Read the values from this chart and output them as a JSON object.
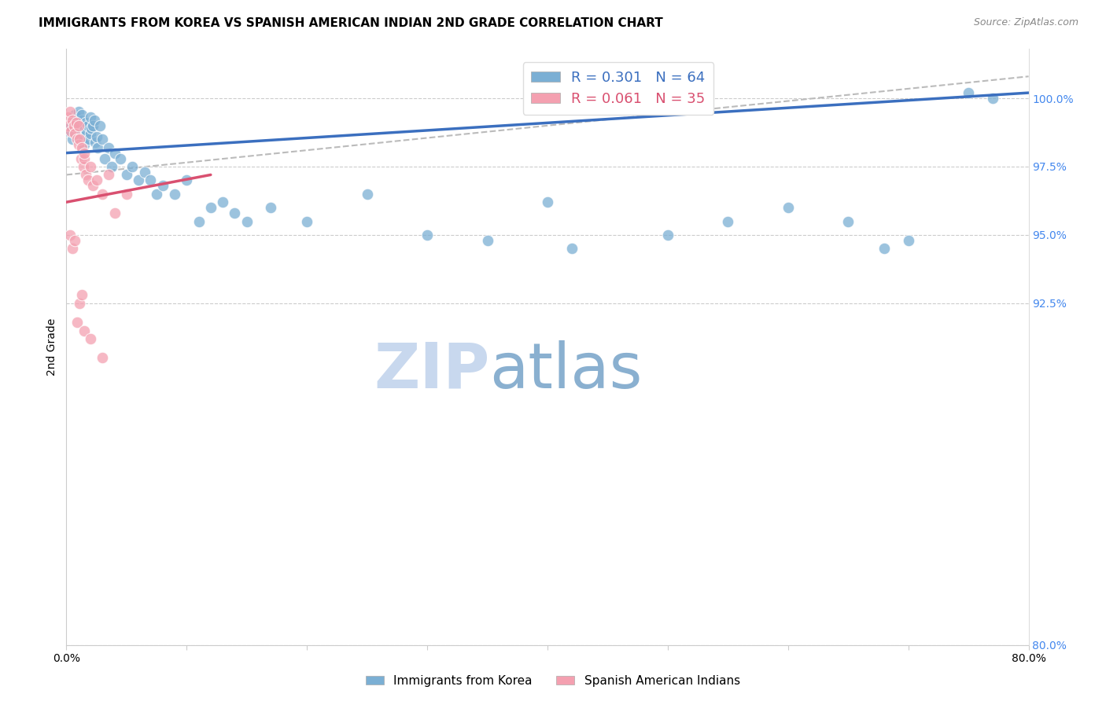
{
  "title": "IMMIGRANTS FROM KOREA VS SPANISH AMERICAN INDIAN 2ND GRADE CORRELATION CHART",
  "source": "Source: ZipAtlas.com",
  "ylabel": "2nd Grade",
  "y_ticks": [
    80.0,
    92.5,
    95.0,
    97.5,
    100.0
  ],
  "x_min": 0.0,
  "x_max": 80.0,
  "y_min": 80.0,
  "y_max": 101.8,
  "blue_R": 0.301,
  "blue_N": 64,
  "pink_R": 0.061,
  "pink_N": 35,
  "blue_color": "#7BAFD4",
  "pink_color": "#F4A0B0",
  "blue_line_color": "#3B6FBF",
  "pink_line_color": "#D95070",
  "gray_dashed_color": "#BBBBBB",
  "legend_blue_label": "Immigrants from Korea",
  "legend_pink_label": "Spanish American Indians",
  "title_fontsize": 11,
  "axis_label_fontsize": 10,
  "tick_fontsize": 10,
  "right_tick_color": "#4488EE",
  "watermark_zip": "ZIP",
  "watermark_atlas": "atlas",
  "watermark_color_zip": "#C8D8EE",
  "watermark_color_atlas": "#8AB0D0",
  "blue_scatter_x": [
    0.2,
    0.4,
    0.5,
    0.6,
    0.7,
    0.8,
    0.9,
    1.0,
    1.0,
    1.1,
    1.2,
    1.3,
    1.3,
    1.4,
    1.5,
    1.5,
    1.6,
    1.7,
    1.8,
    1.9,
    2.0,
    2.0,
    2.1,
    2.2,
    2.3,
    2.4,
    2.5,
    2.6,
    2.8,
    3.0,
    3.2,
    3.5,
    3.8,
    4.0,
    4.5,
    5.0,
    5.5,
    6.0,
    6.5,
    7.0,
    7.5,
    8.0,
    9.0,
    10.0,
    11.0,
    12.0,
    13.0,
    14.0,
    15.0,
    17.0,
    20.0,
    25.0,
    30.0,
    35.0,
    40.0,
    42.0,
    50.0,
    55.0,
    60.0,
    65.0,
    68.0,
    70.0,
    75.0,
    77.0
  ],
  "blue_scatter_y": [
    98.8,
    99.0,
    98.5,
    99.2,
    99.4,
    99.3,
    98.9,
    99.0,
    99.5,
    99.1,
    98.7,
    99.2,
    99.4,
    98.6,
    99.0,
    98.3,
    99.1,
    98.8,
    99.0,
    98.5,
    99.3,
    98.7,
    98.9,
    99.0,
    99.2,
    98.4,
    98.6,
    98.2,
    99.0,
    98.5,
    97.8,
    98.2,
    97.5,
    98.0,
    97.8,
    97.2,
    97.5,
    97.0,
    97.3,
    97.0,
    96.5,
    96.8,
    96.5,
    97.0,
    95.5,
    96.0,
    96.2,
    95.8,
    95.5,
    96.0,
    95.5,
    96.5,
    95.0,
    94.8,
    96.2,
    94.5,
    95.0,
    95.5,
    96.0,
    95.5,
    94.5,
    94.8,
    100.2,
    100.0
  ],
  "pink_scatter_x": [
    0.1,
    0.2,
    0.3,
    0.4,
    0.5,
    0.6,
    0.7,
    0.8,
    0.9,
    1.0,
    1.0,
    1.1,
    1.2,
    1.3,
    1.4,
    1.5,
    1.5,
    1.6,
    1.8,
    2.0,
    2.2,
    2.5,
    3.0,
    3.5,
    4.0,
    5.0,
    0.3,
    0.5,
    0.7,
    0.9,
    1.1,
    1.3,
    1.5,
    2.0,
    3.0
  ],
  "pink_scatter_y": [
    99.3,
    99.0,
    99.5,
    98.8,
    99.2,
    99.0,
    98.7,
    99.1,
    98.5,
    99.0,
    98.3,
    98.5,
    97.8,
    98.2,
    97.5,
    97.8,
    98.0,
    97.2,
    97.0,
    97.5,
    96.8,
    97.0,
    96.5,
    97.2,
    95.8,
    96.5,
    95.0,
    94.5,
    94.8,
    91.8,
    92.5,
    92.8,
    91.5,
    91.2,
    90.5
  ]
}
